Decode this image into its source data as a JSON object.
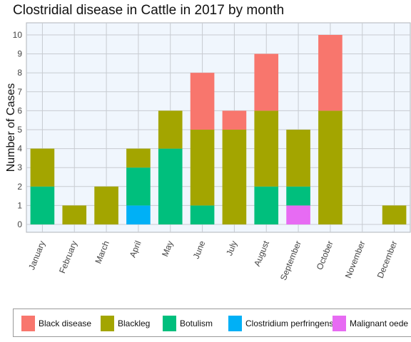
{
  "chart_data": {
    "type": "bar",
    "stacked": true,
    "title": "Clostridial disease in Cattle in 2017 by month",
    "xlabel": "",
    "ylabel": "Number of Cases",
    "ylim": [
      0,
      10
    ],
    "yticks": [
      0,
      1,
      2,
      3,
      4,
      5,
      6,
      7,
      8,
      9,
      10
    ],
    "grid": true,
    "legend_position": "bottom",
    "categories": [
      "January",
      "February",
      "March",
      "April",
      "May",
      "June",
      "July",
      "August",
      "September",
      "October",
      "November",
      "December"
    ],
    "series": [
      {
        "name": "Malignant oedema",
        "color": "#e76bf3",
        "values": [
          0,
          0,
          0,
          0,
          0,
          0,
          0,
          0,
          1,
          0,
          0,
          0
        ]
      },
      {
        "name": "Clostridium perfringens",
        "color": "#00b0f6",
        "values": [
          0,
          0,
          0,
          1,
          0,
          0,
          0,
          0,
          0,
          0,
          0,
          0
        ]
      },
      {
        "name": "Botulism",
        "color": "#00bf7d",
        "values": [
          2,
          0,
          0,
          2,
          4,
          1,
          0,
          2,
          1,
          0,
          0,
          0
        ]
      },
      {
        "name": "Blackleg",
        "color": "#a3a500",
        "values": [
          2,
          1,
          2,
          1,
          2,
          4,
          5,
          4,
          3,
          6,
          0,
          1
        ]
      },
      {
        "name": "Black disease",
        "color": "#f8766d",
        "values": [
          0,
          0,
          0,
          0,
          0,
          3,
          1,
          3,
          0,
          4,
          0,
          0
        ]
      }
    ],
    "legend_order": [
      "Black disease",
      "Blackleg",
      "Botulism",
      "Clostridium perfringens",
      "Malignant oede"
    ]
  },
  "colors": {
    "panel_background": "#f0f6fd",
    "grid": "#c7cbd1",
    "axis": "#b0b4ba"
  }
}
